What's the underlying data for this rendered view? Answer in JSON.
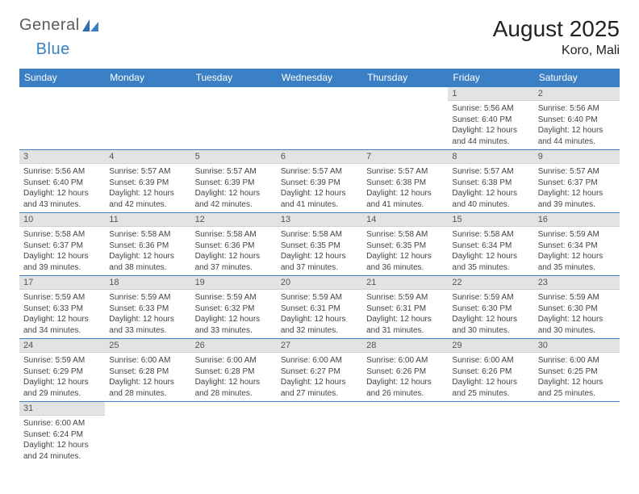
{
  "logo": {
    "text_general": "General",
    "text_blue": "Blue"
  },
  "title": "August 2025",
  "location": "Koro, Mali",
  "colors": {
    "header_bg": "#3b7fc4",
    "header_text": "#ffffff",
    "daynum_bg": "#e3e3e3",
    "daynum_text": "#555555",
    "body_text": "#444444",
    "row_border": "#3b7fc4",
    "page_bg": "#ffffff"
  },
  "fonts": {
    "title_size_pt": 21,
    "location_size_pt": 12,
    "weekday_size_pt": 9,
    "daynum_size_pt": 8,
    "body_size_pt": 7.5
  },
  "weekdays": [
    "Sunday",
    "Monday",
    "Tuesday",
    "Wednesday",
    "Thursday",
    "Friday",
    "Saturday"
  ],
  "weeks": [
    [
      null,
      null,
      null,
      null,
      null,
      {
        "day": "1",
        "sunrise": "Sunrise: 5:56 AM",
        "sunset": "Sunset: 6:40 PM",
        "daylight1": "Daylight: 12 hours",
        "daylight2": "and 44 minutes."
      },
      {
        "day": "2",
        "sunrise": "Sunrise: 5:56 AM",
        "sunset": "Sunset: 6:40 PM",
        "daylight1": "Daylight: 12 hours",
        "daylight2": "and 44 minutes."
      }
    ],
    [
      {
        "day": "3",
        "sunrise": "Sunrise: 5:56 AM",
        "sunset": "Sunset: 6:40 PM",
        "daylight1": "Daylight: 12 hours",
        "daylight2": "and 43 minutes."
      },
      {
        "day": "4",
        "sunrise": "Sunrise: 5:57 AM",
        "sunset": "Sunset: 6:39 PM",
        "daylight1": "Daylight: 12 hours",
        "daylight2": "and 42 minutes."
      },
      {
        "day": "5",
        "sunrise": "Sunrise: 5:57 AM",
        "sunset": "Sunset: 6:39 PM",
        "daylight1": "Daylight: 12 hours",
        "daylight2": "and 42 minutes."
      },
      {
        "day": "6",
        "sunrise": "Sunrise: 5:57 AM",
        "sunset": "Sunset: 6:39 PM",
        "daylight1": "Daylight: 12 hours",
        "daylight2": "and 41 minutes."
      },
      {
        "day": "7",
        "sunrise": "Sunrise: 5:57 AM",
        "sunset": "Sunset: 6:38 PM",
        "daylight1": "Daylight: 12 hours",
        "daylight2": "and 41 minutes."
      },
      {
        "day": "8",
        "sunrise": "Sunrise: 5:57 AM",
        "sunset": "Sunset: 6:38 PM",
        "daylight1": "Daylight: 12 hours",
        "daylight2": "and 40 minutes."
      },
      {
        "day": "9",
        "sunrise": "Sunrise: 5:57 AM",
        "sunset": "Sunset: 6:37 PM",
        "daylight1": "Daylight: 12 hours",
        "daylight2": "and 39 minutes."
      }
    ],
    [
      {
        "day": "10",
        "sunrise": "Sunrise: 5:58 AM",
        "sunset": "Sunset: 6:37 PM",
        "daylight1": "Daylight: 12 hours",
        "daylight2": "and 39 minutes."
      },
      {
        "day": "11",
        "sunrise": "Sunrise: 5:58 AM",
        "sunset": "Sunset: 6:36 PM",
        "daylight1": "Daylight: 12 hours",
        "daylight2": "and 38 minutes."
      },
      {
        "day": "12",
        "sunrise": "Sunrise: 5:58 AM",
        "sunset": "Sunset: 6:36 PM",
        "daylight1": "Daylight: 12 hours",
        "daylight2": "and 37 minutes."
      },
      {
        "day": "13",
        "sunrise": "Sunrise: 5:58 AM",
        "sunset": "Sunset: 6:35 PM",
        "daylight1": "Daylight: 12 hours",
        "daylight2": "and 37 minutes."
      },
      {
        "day": "14",
        "sunrise": "Sunrise: 5:58 AM",
        "sunset": "Sunset: 6:35 PM",
        "daylight1": "Daylight: 12 hours",
        "daylight2": "and 36 minutes."
      },
      {
        "day": "15",
        "sunrise": "Sunrise: 5:58 AM",
        "sunset": "Sunset: 6:34 PM",
        "daylight1": "Daylight: 12 hours",
        "daylight2": "and 35 minutes."
      },
      {
        "day": "16",
        "sunrise": "Sunrise: 5:59 AM",
        "sunset": "Sunset: 6:34 PM",
        "daylight1": "Daylight: 12 hours",
        "daylight2": "and 35 minutes."
      }
    ],
    [
      {
        "day": "17",
        "sunrise": "Sunrise: 5:59 AM",
        "sunset": "Sunset: 6:33 PM",
        "daylight1": "Daylight: 12 hours",
        "daylight2": "and 34 minutes."
      },
      {
        "day": "18",
        "sunrise": "Sunrise: 5:59 AM",
        "sunset": "Sunset: 6:33 PM",
        "daylight1": "Daylight: 12 hours",
        "daylight2": "and 33 minutes."
      },
      {
        "day": "19",
        "sunrise": "Sunrise: 5:59 AM",
        "sunset": "Sunset: 6:32 PM",
        "daylight1": "Daylight: 12 hours",
        "daylight2": "and 33 minutes."
      },
      {
        "day": "20",
        "sunrise": "Sunrise: 5:59 AM",
        "sunset": "Sunset: 6:31 PM",
        "daylight1": "Daylight: 12 hours",
        "daylight2": "and 32 minutes."
      },
      {
        "day": "21",
        "sunrise": "Sunrise: 5:59 AM",
        "sunset": "Sunset: 6:31 PM",
        "daylight1": "Daylight: 12 hours",
        "daylight2": "and 31 minutes."
      },
      {
        "day": "22",
        "sunrise": "Sunrise: 5:59 AM",
        "sunset": "Sunset: 6:30 PM",
        "daylight1": "Daylight: 12 hours",
        "daylight2": "and 30 minutes."
      },
      {
        "day": "23",
        "sunrise": "Sunrise: 5:59 AM",
        "sunset": "Sunset: 6:30 PM",
        "daylight1": "Daylight: 12 hours",
        "daylight2": "and 30 minutes."
      }
    ],
    [
      {
        "day": "24",
        "sunrise": "Sunrise: 5:59 AM",
        "sunset": "Sunset: 6:29 PM",
        "daylight1": "Daylight: 12 hours",
        "daylight2": "and 29 minutes."
      },
      {
        "day": "25",
        "sunrise": "Sunrise: 6:00 AM",
        "sunset": "Sunset: 6:28 PM",
        "daylight1": "Daylight: 12 hours",
        "daylight2": "and 28 minutes."
      },
      {
        "day": "26",
        "sunrise": "Sunrise: 6:00 AM",
        "sunset": "Sunset: 6:28 PM",
        "daylight1": "Daylight: 12 hours",
        "daylight2": "and 28 minutes."
      },
      {
        "day": "27",
        "sunrise": "Sunrise: 6:00 AM",
        "sunset": "Sunset: 6:27 PM",
        "daylight1": "Daylight: 12 hours",
        "daylight2": "and 27 minutes."
      },
      {
        "day": "28",
        "sunrise": "Sunrise: 6:00 AM",
        "sunset": "Sunset: 6:26 PM",
        "daylight1": "Daylight: 12 hours",
        "daylight2": "and 26 minutes."
      },
      {
        "day": "29",
        "sunrise": "Sunrise: 6:00 AM",
        "sunset": "Sunset: 6:26 PM",
        "daylight1": "Daylight: 12 hours",
        "daylight2": "and 25 minutes."
      },
      {
        "day": "30",
        "sunrise": "Sunrise: 6:00 AM",
        "sunset": "Sunset: 6:25 PM",
        "daylight1": "Daylight: 12 hours",
        "daylight2": "and 25 minutes."
      }
    ],
    [
      {
        "day": "31",
        "sunrise": "Sunrise: 6:00 AM",
        "sunset": "Sunset: 6:24 PM",
        "daylight1": "Daylight: 12 hours",
        "daylight2": "and 24 minutes."
      },
      null,
      null,
      null,
      null,
      null,
      null
    ]
  ]
}
